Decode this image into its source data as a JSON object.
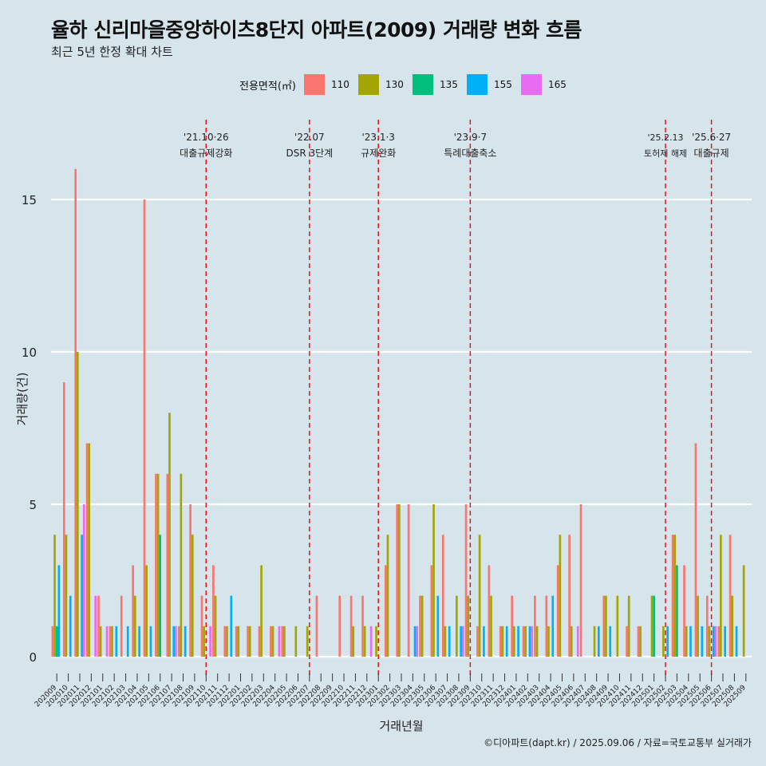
{
  "title": "율하 신리마을중앙하이츠8단지 아파트(2009) 거래량 변화 흐름",
  "subtitle": "최근 5년 한정 확대 차트",
  "caption": "©디아파트(dapt.kr) / 2025.09.06 / 자료=국토교통부 실거래가",
  "legend": {
    "title": "전용면적(㎡)",
    "items": [
      {
        "label": "110",
        "color": "#F8766D"
      },
      {
        "label": "130",
        "color": "#A3A500"
      },
      {
        "label": "135",
        "color": "#00BF7D"
      },
      {
        "label": "155",
        "color": "#00B0F6"
      },
      {
        "label": "165",
        "color": "#E76BF3"
      }
    ]
  },
  "chart_data": {
    "type": "bar",
    "xlabel": "거래년월",
    "ylabel": "거래량(건)",
    "ylim": [
      0,
      16
    ],
    "yticks": [
      0,
      5,
      10,
      15
    ],
    "grid": true,
    "categories": [
      "202009",
      "202010",
      "202011",
      "202012",
      "202101",
      "202102",
      "202103",
      "202104",
      "202105",
      "202106",
      "202107",
      "202108",
      "202109",
      "202110",
      "202111",
      "202112",
      "202201",
      "202202",
      "202203",
      "202204",
      "202205",
      "202206",
      "202207",
      "202208",
      "202209",
      "202210",
      "202211",
      "202212",
      "202301",
      "202302",
      "202303",
      "202304",
      "202305",
      "202306",
      "202307",
      "202308",
      "202309",
      "202310",
      "202311",
      "202312",
      "202401",
      "202402",
      "202403",
      "202404",
      "202405",
      "202406",
      "202407",
      "202408",
      "202409",
      "202410",
      "202411",
      "202412",
      "202501",
      "202502",
      "202503",
      "202504",
      "202505",
      "202506",
      "202507",
      "202508",
      "202509"
    ],
    "series": [
      {
        "name": "110",
        "color": "#F8766D",
        "values": [
          1,
          9,
          16,
          7,
          2,
          1,
          2,
          3,
          15,
          6,
          6,
          1,
          5,
          2,
          3,
          1,
          1,
          1,
          1,
          1,
          1,
          0,
          0,
          2,
          0,
          2,
          2,
          2,
          0,
          3,
          5,
          5,
          2,
          3,
          4,
          0,
          5,
          1,
          3,
          1,
          2,
          1,
          2,
          2,
          3,
          4,
          5,
          0,
          2,
          0,
          1,
          1,
          0,
          0,
          4,
          3,
          7,
          2,
          1,
          4,
          0
        ]
      },
      {
        "name": "130",
        "color": "#A3A500",
        "values": [
          4,
          4,
          10,
          7,
          1,
          1,
          0,
          2,
          3,
          6,
          8,
          6,
          4,
          1,
          2,
          1,
          1,
          1,
          3,
          1,
          1,
          1,
          1,
          0,
          0,
          0,
          1,
          1,
          1,
          4,
          5,
          0,
          2,
          5,
          1,
          2,
          2,
          4,
          2,
          1,
          1,
          1,
          1,
          1,
          4,
          1,
          0,
          1,
          2,
          2,
          2,
          1,
          2,
          1,
          4,
          1,
          2,
          1,
          4,
          2,
          3
        ]
      },
      {
        "name": "135",
        "color": "#00BF7D",
        "values": [
          1,
          0,
          0,
          0,
          0,
          0,
          0,
          0,
          0,
          4,
          0,
          0,
          0,
          0,
          0,
          0,
          0,
          0,
          0,
          0,
          0,
          0,
          0,
          0,
          0,
          0,
          0,
          0,
          0,
          0,
          0,
          0,
          0,
          0,
          0,
          0,
          0,
          0,
          0,
          0,
          0,
          0,
          0,
          0,
          0,
          0,
          0,
          0,
          0,
          0,
          0,
          0,
          2,
          0,
          3,
          0,
          0,
          0,
          0,
          0,
          0
        ]
      },
      {
        "name": "155",
        "color": "#00B0F6",
        "values": [
          3,
          2,
          4,
          0,
          0,
          1,
          1,
          1,
          1,
          0,
          1,
          1,
          0,
          0,
          0,
          2,
          0,
          0,
          0,
          0,
          0,
          0,
          0,
          0,
          0,
          0,
          0,
          0,
          0,
          0,
          0,
          1,
          0,
          2,
          1,
          1,
          0,
          1,
          0,
          1,
          1,
          1,
          0,
          2,
          0,
          0,
          0,
          1,
          1,
          0,
          0,
          0,
          0,
          1,
          0,
          1,
          1,
          1,
          1,
          1,
          0
        ]
      },
      {
        "name": "165",
        "color": "#E76BF3",
        "values": [
          0,
          0,
          5,
          2,
          1,
          0,
          0,
          0,
          0,
          0,
          1,
          0,
          0,
          1,
          0,
          0,
          0,
          0,
          0,
          1,
          0,
          0,
          0,
          0,
          0,
          0,
          0,
          1,
          0,
          0,
          0,
          1,
          0,
          0,
          0,
          1,
          0,
          0,
          0,
          0,
          0,
          1,
          0,
          0,
          0,
          1,
          0,
          0,
          0,
          0,
          0,
          0,
          0,
          0,
          0,
          0,
          0,
          1,
          0,
          0,
          0
        ]
      }
    ],
    "annotations": [
      {
        "at": "202110",
        "date": "'21.10·26",
        "label": "대출규제강화"
      },
      {
        "at": "202207",
        "date": "'22.07",
        "label": "DSR 3단계"
      },
      {
        "at": "202301",
        "date": "'23.1·3",
        "label": "규제완화"
      },
      {
        "at": "202309",
        "date": "'23.9·7",
        "label": "특례대출축소"
      },
      {
        "at": "202502",
        "date": "'25.2.13",
        "label": "토허제 해제"
      },
      {
        "at": "202506",
        "date": "'25.6·27",
        "label": "대출규제"
      }
    ]
  }
}
